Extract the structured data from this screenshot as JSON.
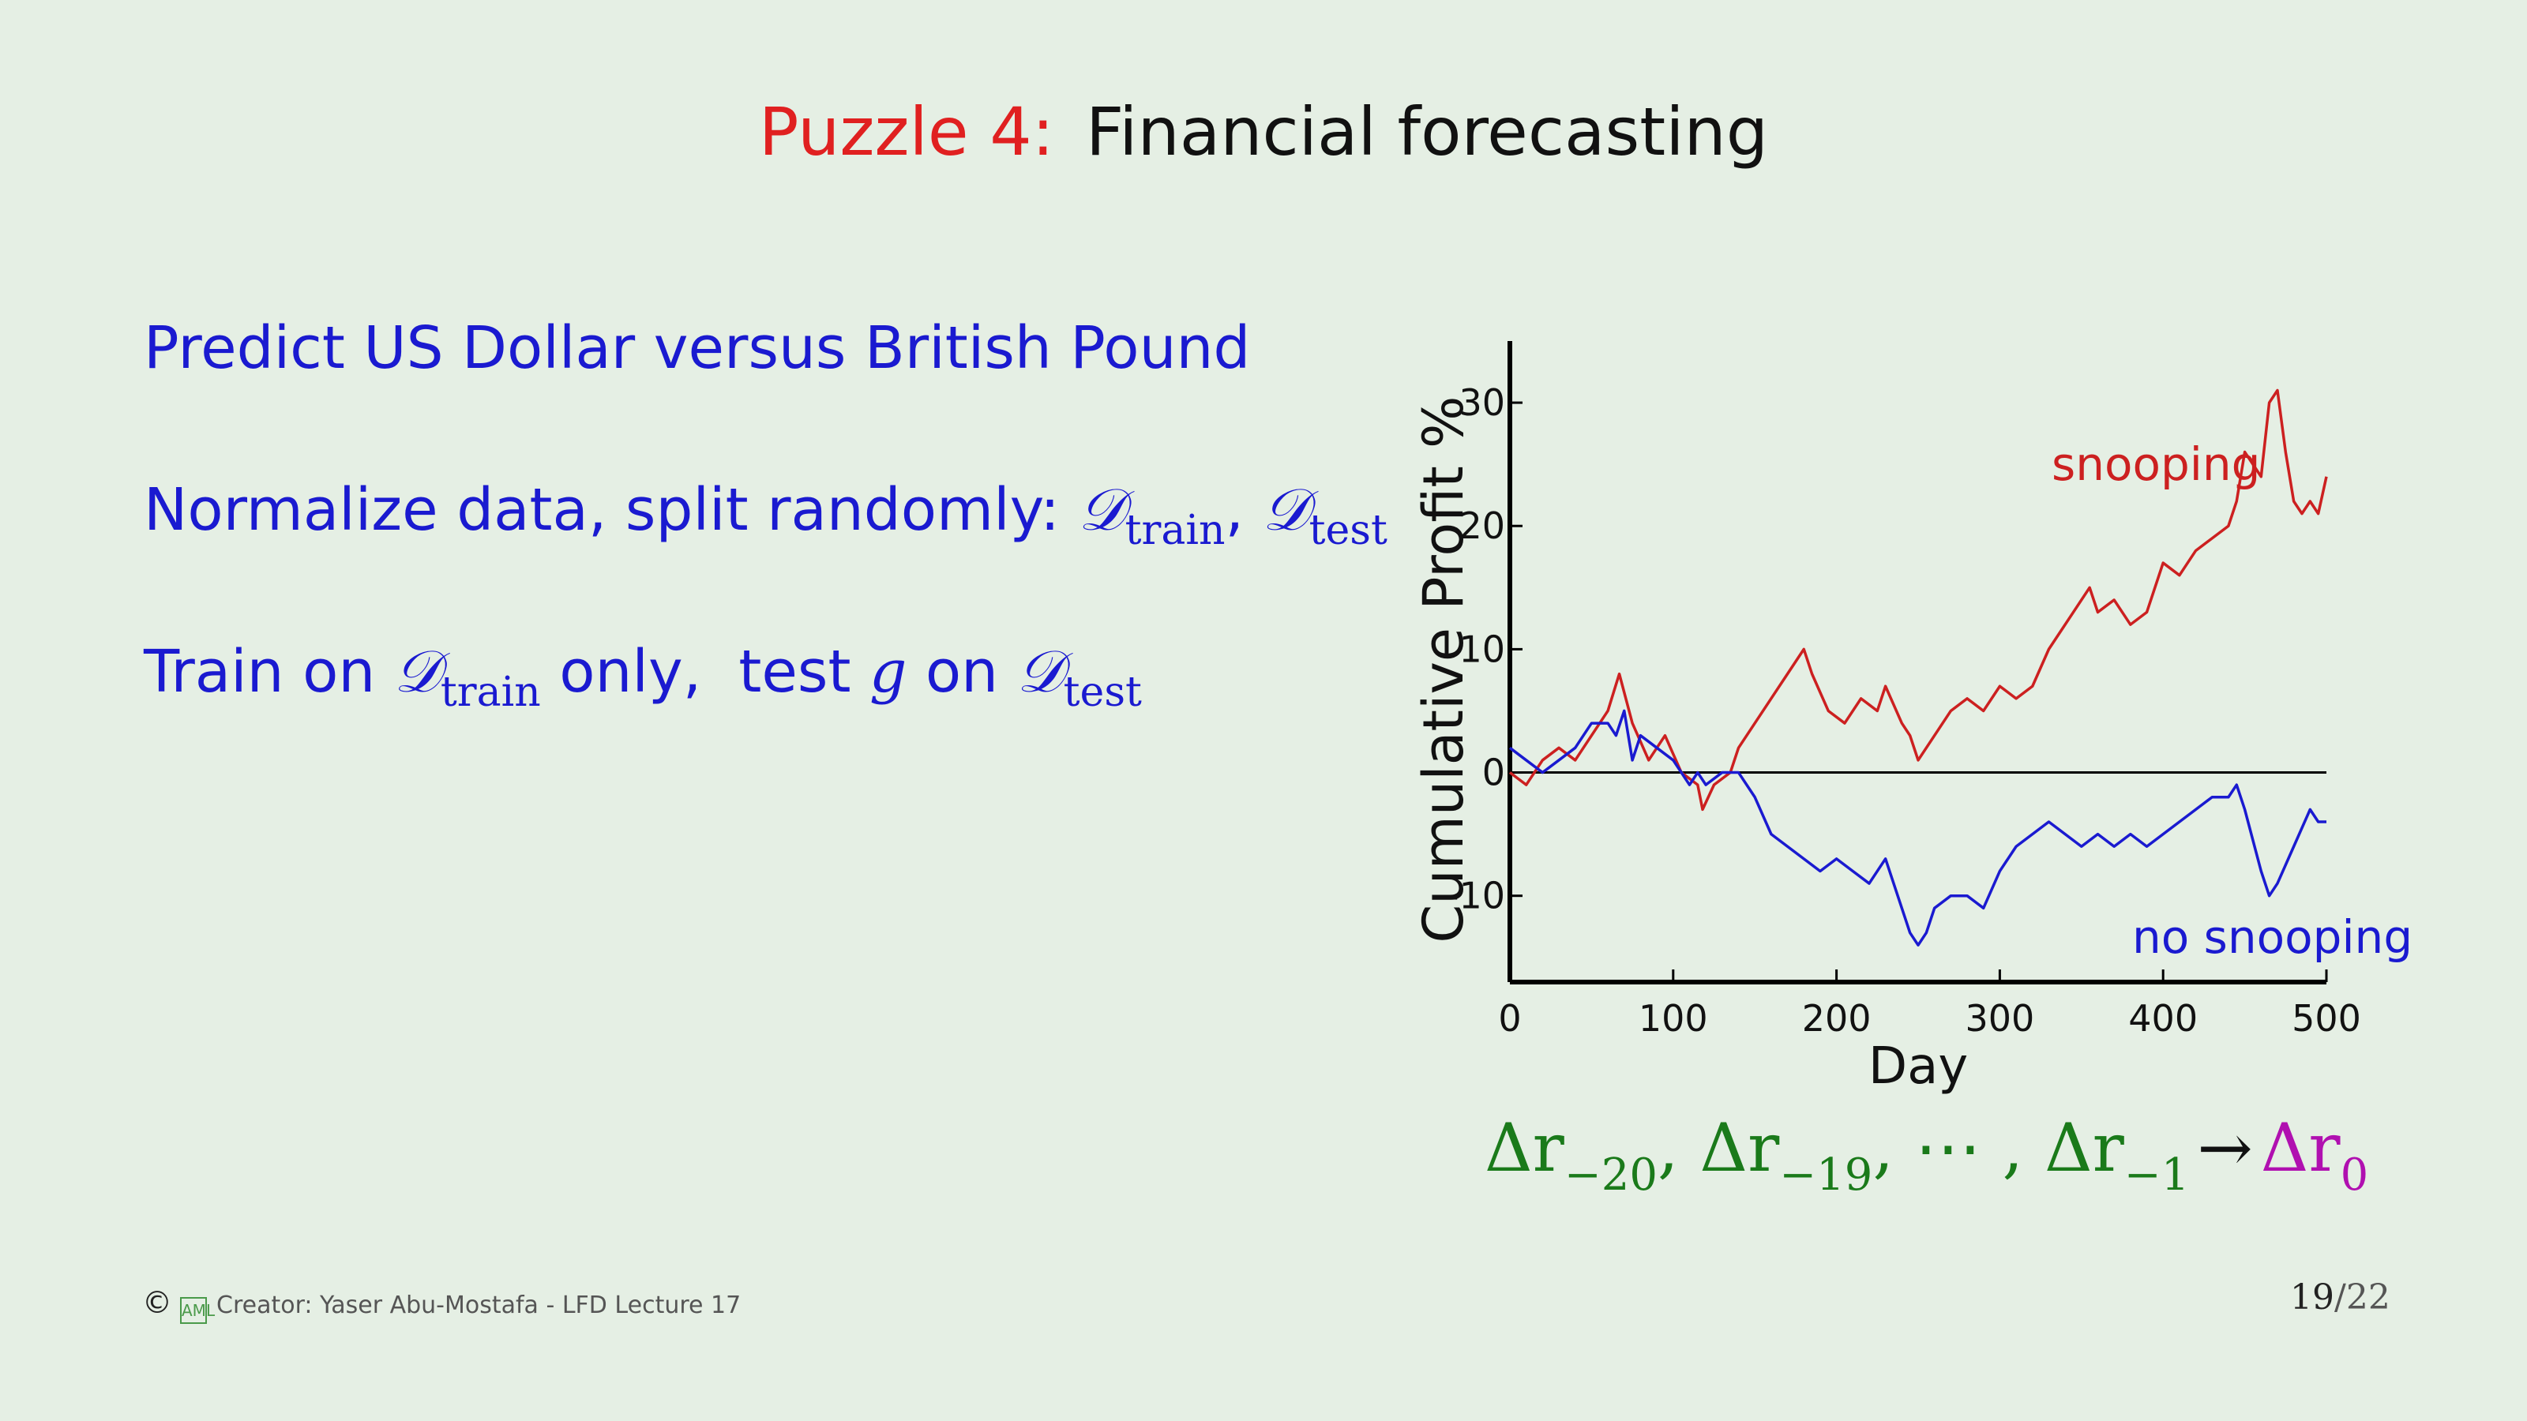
{
  "slide": {
    "title_highlight": "Puzzle 4:",
    "title_rest": "Financial forecasting"
  },
  "bullets": {
    "b1": "Predict US Dollar versus British Pound",
    "b2_text": "Normalize data, split randomly: ",
    "b3_text1": "Train on ",
    "b3_text2": " only,  test ",
    "b3_text3": " on ",
    "d_symbol": "𝒟",
    "sub_train": "train",
    "sub_test": "test",
    "g_symbol": "g",
    "comma": ", "
  },
  "formula": {
    "delta_r": "Δr",
    "s1": "−20",
    "s2": "−19",
    "dots": ", ⋯ , ",
    "s3": "−1",
    "arrow": "→",
    "s4": "0",
    "sep": ", "
  },
  "footer": {
    "copyright": "©",
    "logo": "AML",
    "creator": "Creator: Yaser Abu-Mostafa - LFD Lecture 17"
  },
  "page": {
    "current": "19",
    "total": "/22"
  },
  "colors": {
    "bullet_text": "#1a1ad0",
    "title_accent": "#e02020",
    "snooping": "#cc2020",
    "no_snooping": "#1a1ad0",
    "formula": "#1a7a1a",
    "target": "#b010b0",
    "background": "#e5efe4"
  },
  "chart_data": {
    "type": "line",
    "xlabel": "Day",
    "ylabel": "Cumulative Profit %",
    "xlim": [
      0,
      500
    ],
    "ylim": [
      -17,
      35
    ],
    "xticks": [
      0,
      100,
      200,
      300,
      400,
      500
    ],
    "yticks": [
      -10,
      0,
      10,
      20,
      30
    ],
    "annotations": [
      "snooping",
      "no snooping"
    ],
    "series": [
      {
        "name": "snooping",
        "color": "#cc2020",
        "x": [
          0,
          10,
          20,
          30,
          40,
          50,
          60,
          67,
          75,
          85,
          95,
          105,
          115,
          118,
          125,
          135,
          140,
          150,
          160,
          170,
          180,
          185,
          195,
          205,
          215,
          225,
          230,
          240,
          245,
          250,
          260,
          270,
          280,
          290,
          300,
          310,
          320,
          330,
          335,
          345,
          355,
          360,
          370,
          380,
          390,
          395,
          400,
          410,
          420,
          430,
          440,
          445,
          450,
          460,
          465,
          470,
          475,
          480,
          485,
          490,
          495,
          500
        ],
        "y": [
          0,
          -1,
          1,
          2,
          1,
          3,
          5,
          8,
          4,
          1,
          3,
          0,
          -1,
          -3,
          -1,
          0,
          2,
          4,
          6,
          8,
          10,
          8,
          5,
          4,
          6,
          5,
          7,
          4,
          3,
          1,
          3,
          5,
          6,
          5,
          7,
          6,
          7,
          10,
          11,
          13,
          15,
          13,
          14,
          12,
          13,
          15,
          17,
          16,
          18,
          19,
          20,
          22,
          26,
          24,
          30,
          31,
          26,
          22,
          21,
          22,
          21,
          24
        ]
      },
      {
        "name": "no snooping",
        "color": "#1a1ad0",
        "x": [
          0,
          10,
          20,
          30,
          40,
          50,
          60,
          65,
          70,
          75,
          80,
          90,
          100,
          110,
          115,
          120,
          130,
          140,
          150,
          160,
          170,
          180,
          190,
          200,
          210,
          220,
          230,
          235,
          240,
          245,
          250,
          255,
          260,
          270,
          280,
          290,
          300,
          310,
          320,
          330,
          340,
          350,
          360,
          370,
          380,
          390,
          400,
          410,
          420,
          430,
          440,
          445,
          450,
          460,
          465,
          470,
          480,
          490,
          495,
          500
        ],
        "y": [
          2,
          1,
          0,
          1,
          2,
          4,
          4,
          3,
          5,
          1,
          3,
          2,
          1,
          -1,
          0,
          -1,
          0,
          0,
          -2,
          -5,
          -6,
          -7,
          -8,
          -7,
          -8,
          -9,
          -7,
          -9,
          -11,
          -13,
          -14,
          -13,
          -11,
          -10,
          -10,
          -11,
          -8,
          -6,
          -5,
          -4,
          -5,
          -6,
          -5,
          -6,
          -5,
          -6,
          -5,
          -4,
          -3,
          -2,
          -2,
          -1,
          -3,
          -8,
          -10,
          -9,
          -6,
          -3,
          -4,
          -4
        ]
      }
    ]
  }
}
